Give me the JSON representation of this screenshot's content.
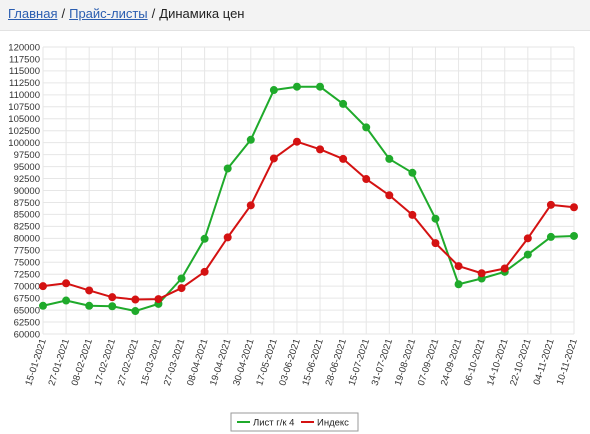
{
  "breadcrumb": {
    "home": "Главная",
    "separator": "/",
    "price_lists": "Прайс-листы",
    "current": "Динамика цен"
  },
  "colors": {
    "series_green": "#1faa2b",
    "series_red": "#d41212",
    "link": "#2a5db0",
    "grid": "#e6e6e6"
  },
  "chart_data": {
    "type": "line",
    "title": "",
    "xlabel": "",
    "ylabel": "",
    "grid": true,
    "legend_position": "bottom",
    "ylim": [
      60000,
      120000
    ],
    "ytick_step": 2500,
    "categories": [
      "15-01-2021",
      "27-01-2021",
      "08-02-2021",
      "17-02-2021",
      "27-02-2021",
      "15-03-2021",
      "27-03-2021",
      "08-04-2021",
      "19-04-2021",
      "30-04-2021",
      "17-05-2021",
      "03-06-2021",
      "15-06-2021",
      "28-06-2021",
      "15-07-2021",
      "31-07-2021",
      "19-08-2021",
      "07-09-2021",
      "24-09-2021",
      "06-10-2021",
      "14-10-2021",
      "22-10-2021",
      "04-11-2021",
      "10-11-2021"
    ],
    "series": [
      {
        "name": "Лист г/к 4",
        "color": "#1faa2b",
        "values": [
          65900,
          67000,
          65900,
          65800,
          64800,
          66300,
          71600,
          79900,
          94600,
          100600,
          111000,
          111700,
          111700,
          108100,
          103200,
          96600,
          93700,
          84100,
          70400,
          71600,
          73000,
          76600,
          80300,
          80500
        ]
      },
      {
        "name": "Индекс",
        "color": "#d41212",
        "values": [
          70000,
          70600,
          69100,
          67700,
          67200,
          67300,
          69600,
          73000,
          80200,
          86900,
          96700,
          100200,
          98600,
          96600,
          92400,
          89000,
          84900,
          79000,
          74200,
          72700,
          73700,
          80000,
          87000,
          86500
        ]
      }
    ]
  }
}
